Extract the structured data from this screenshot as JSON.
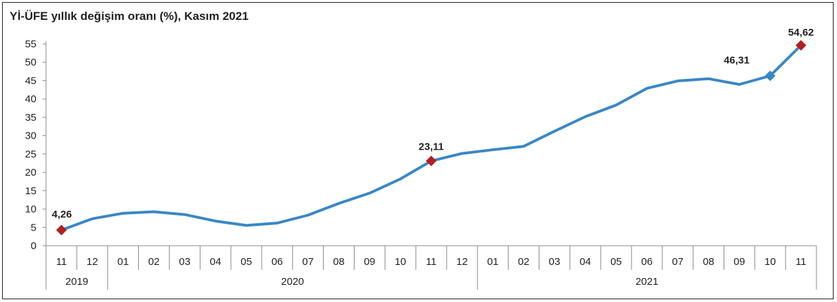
{
  "chart_data": {
    "type": "line",
    "title": "Yİ-ÜFE yıllık değişim oranı (%), Kasım 2021",
    "xlabel": "",
    "ylabel": "",
    "ylim": [
      0,
      55
    ],
    "yticks": [
      "0",
      "5",
      "10",
      "15",
      "20",
      "25",
      "30",
      "35",
      "40",
      "45",
      "50",
      "55"
    ],
    "categories": [
      "11",
      "12",
      "01",
      "02",
      "03",
      "04",
      "05",
      "06",
      "07",
      "08",
      "09",
      "10",
      "11",
      "12",
      "01",
      "02",
      "03",
      "04",
      "05",
      "06",
      "07",
      "08",
      "09",
      "10",
      "11"
    ],
    "year_groups": [
      {
        "label": "2019",
        "start": 0,
        "end": 1
      },
      {
        "label": "2020",
        "start": 2,
        "end": 13
      },
      {
        "label": "2021",
        "start": 14,
        "end": 24
      }
    ],
    "series": [
      {
        "values": [
          4.26,
          7.36,
          8.84,
          9.26,
          8.5,
          6.71,
          5.53,
          6.17,
          8.33,
          11.53,
          14.33,
          18.2,
          23.11,
          25.15,
          26.16,
          27.09,
          31.2,
          35.17,
          38.33,
          42.89,
          44.92,
          45.52,
          43.96,
          46.31,
          54.62
        ],
        "color": "#3a87c4"
      }
    ],
    "highlighted_points": [
      {
        "index": 0,
        "label": "4,26",
        "color": "#b21f1f"
      },
      {
        "index": 12,
        "label": "23,11",
        "color": "#b21f1f"
      },
      {
        "index": 23,
        "label": "46,31",
        "color": "#3a87c4"
      },
      {
        "index": 24,
        "label": "54,62",
        "color": "#b21f1f"
      }
    ],
    "grid": false,
    "legend": "none"
  }
}
